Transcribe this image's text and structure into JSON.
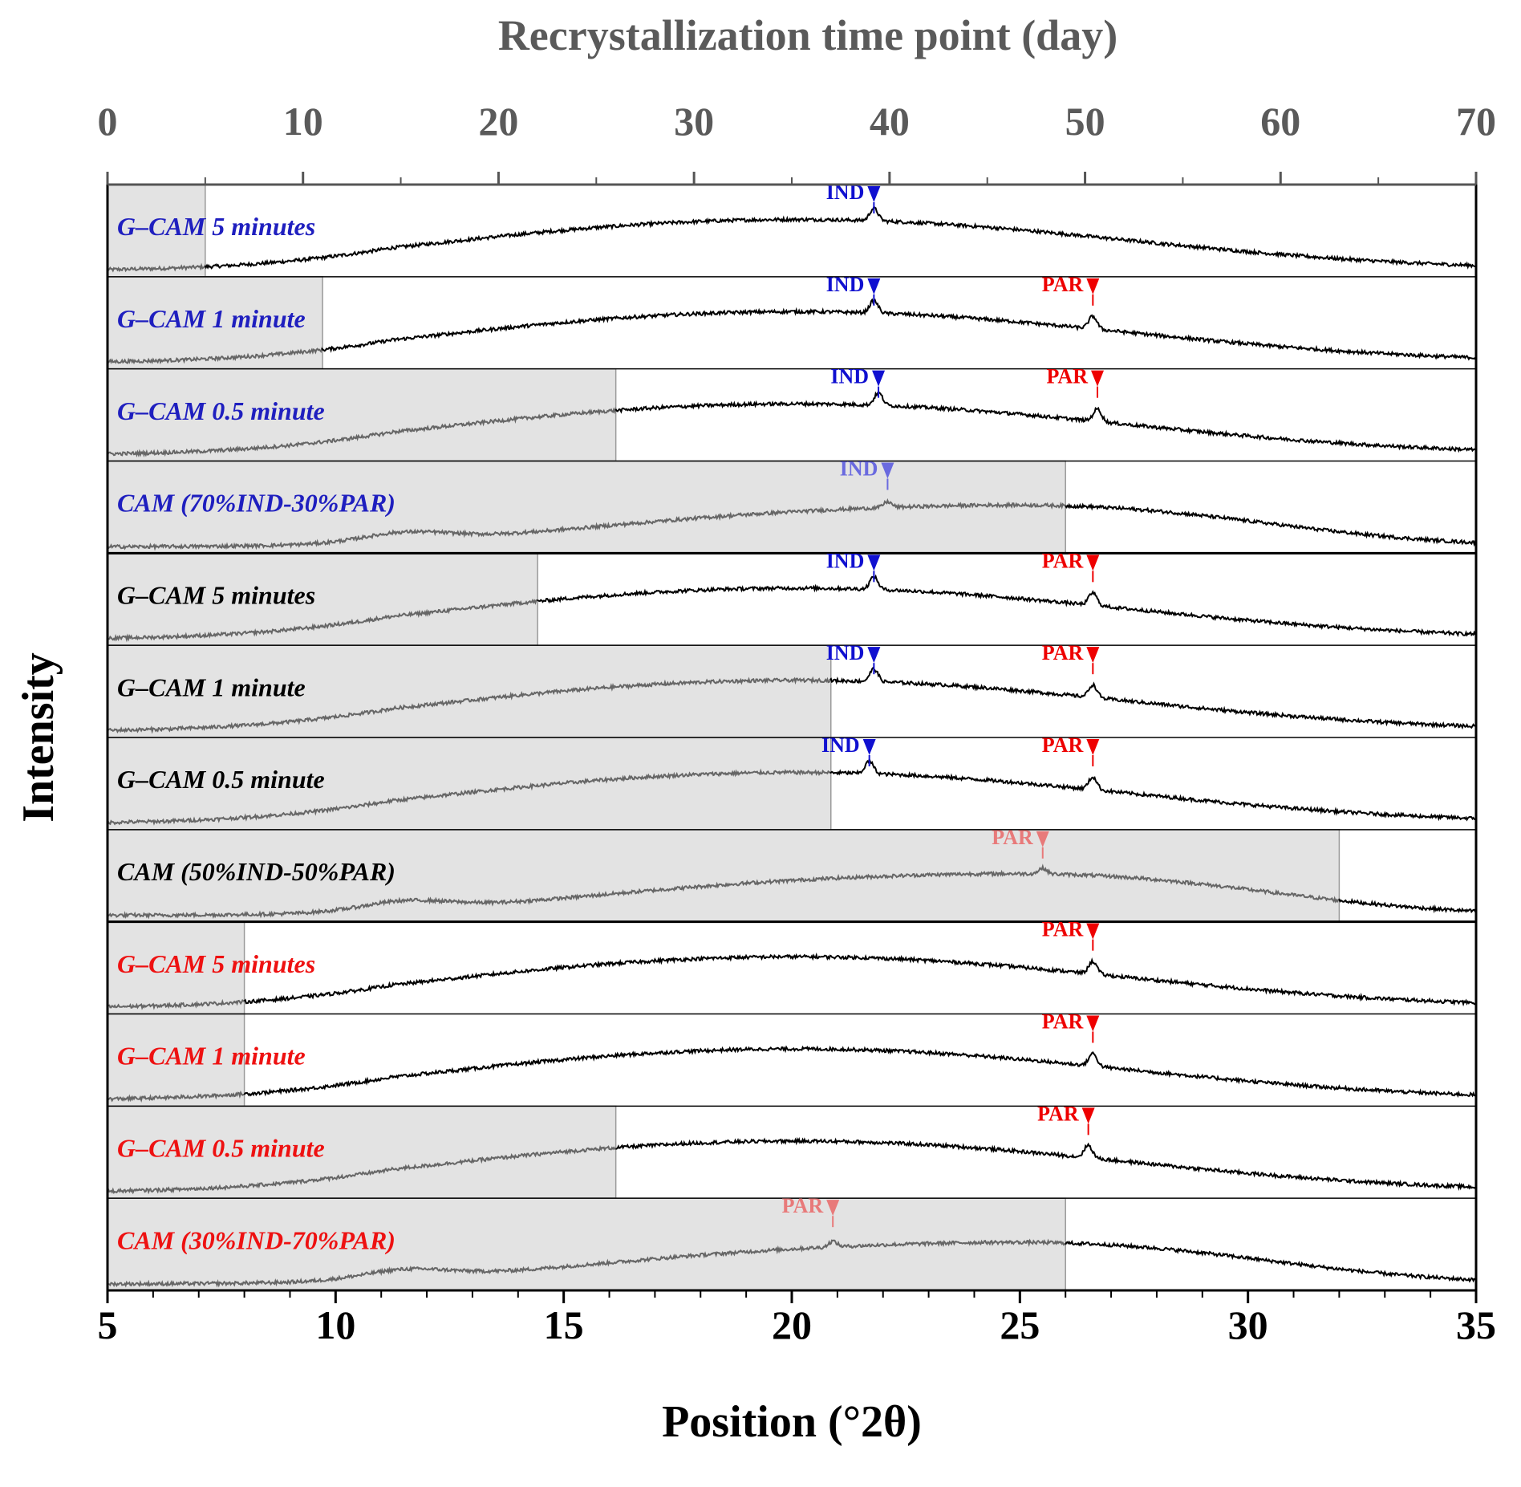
{
  "chart_data": {
    "type": "line",
    "x_axis": {
      "label": "Position (°2θ)",
      "range": [
        5,
        35
      ],
      "ticks": [
        5,
        10,
        15,
        20,
        25,
        30,
        35
      ]
    },
    "top_axis": {
      "label": "Recrystallization time point (day)",
      "range": [
        0,
        70
      ],
      "ticks": [
        0,
        10,
        20,
        30,
        40,
        50,
        60,
        70
      ]
    },
    "y_axis": {
      "label": "Intensity"
    },
    "colors": {
      "blue": "#1f1fbf",
      "black": "#000000",
      "red": "#ee1111",
      "shade": "#e3e3e3",
      "trace_dark": "#000000",
      "trace_faded": "#666666",
      "marker_blue": "#1010d0",
      "marker_blue_faded": "#6a6adf",
      "marker_red": "#ee0000",
      "marker_red_faded": "#e87a7a"
    },
    "panels": [
      {
        "label": "G–CAM 5 minutes",
        "label_color": "blue",
        "recrystallization_day": 5,
        "shape": "early",
        "markers": [
          {
            "text": "IND",
            "x": 21.8,
            "color": "blue",
            "faded": false
          }
        ]
      },
      {
        "label": "G–CAM 1 minute",
        "label_color": "blue",
        "recrystallization_day": 11,
        "shape": "early",
        "markers": [
          {
            "text": "IND",
            "x": 21.8,
            "color": "blue",
            "faded": false
          },
          {
            "text": "PAR",
            "x": 26.6,
            "color": "red",
            "faded": false
          }
        ]
      },
      {
        "label": "G–CAM 0.5 minute",
        "label_color": "blue",
        "recrystallization_day": 26,
        "shape": "early",
        "markers": [
          {
            "text": "IND",
            "x": 21.9,
            "color": "blue",
            "faded": false
          },
          {
            "text": "PAR",
            "x": 26.7,
            "color": "red",
            "faded": false
          }
        ]
      },
      {
        "label": "CAM (70%IND-30%PAR)",
        "label_color": "blue",
        "recrystallization_day": 49,
        "shape": "late",
        "markers": [
          {
            "text": "IND",
            "x": 22.1,
            "color": "blue",
            "faded": true
          }
        ]
      },
      {
        "label": "G–CAM 5 minutes",
        "label_color": "black",
        "recrystallization_day": 22,
        "shape": "early",
        "markers": [
          {
            "text": "IND",
            "x": 21.8,
            "color": "blue",
            "faded": false
          },
          {
            "text": "PAR",
            "x": 26.6,
            "color": "red",
            "faded": false
          }
        ]
      },
      {
        "label": "G–CAM 1 minute",
        "label_color": "black",
        "recrystallization_day": 37,
        "shape": "early",
        "markers": [
          {
            "text": "IND",
            "x": 21.8,
            "color": "blue",
            "faded": false
          },
          {
            "text": "PAR",
            "x": 26.6,
            "color": "red",
            "faded": false
          }
        ]
      },
      {
        "label": "G–CAM 0.5 minute",
        "label_color": "black",
        "recrystallization_day": 37,
        "shape": "early",
        "markers": [
          {
            "text": "IND",
            "x": 21.7,
            "color": "blue",
            "faded": false
          },
          {
            "text": "PAR",
            "x": 26.6,
            "color": "red",
            "faded": false
          }
        ]
      },
      {
        "label": "CAM (50%IND-50%PAR)",
        "label_color": "black",
        "recrystallization_day": 63,
        "shape": "late",
        "markers": [
          {
            "text": "PAR",
            "x": 25.5,
            "color": "red",
            "faded": true
          }
        ]
      },
      {
        "label": "G–CAM 5 minutes",
        "label_color": "red",
        "recrystallization_day": 7,
        "shape": "early",
        "markers": [
          {
            "text": "PAR",
            "x": 26.6,
            "color": "red",
            "faded": false
          }
        ]
      },
      {
        "label": "G–CAM 1 minute",
        "label_color": "red",
        "recrystallization_day": 7,
        "shape": "early",
        "markers": [
          {
            "text": "PAR",
            "x": 26.6,
            "color": "red",
            "faded": false
          }
        ]
      },
      {
        "label": "G–CAM 0.5 minute",
        "label_color": "red",
        "recrystallization_day": 26,
        "shape": "early",
        "markers": [
          {
            "text": "PAR",
            "x": 26.5,
            "color": "red",
            "faded": false
          }
        ]
      },
      {
        "label": "CAM (30%IND-70%PAR)",
        "label_color": "red",
        "recrystallization_day": 49,
        "shape": "late",
        "markers": [
          {
            "text": "PAR",
            "x": 20.9,
            "color": "red",
            "faded": true
          }
        ]
      }
    ]
  }
}
